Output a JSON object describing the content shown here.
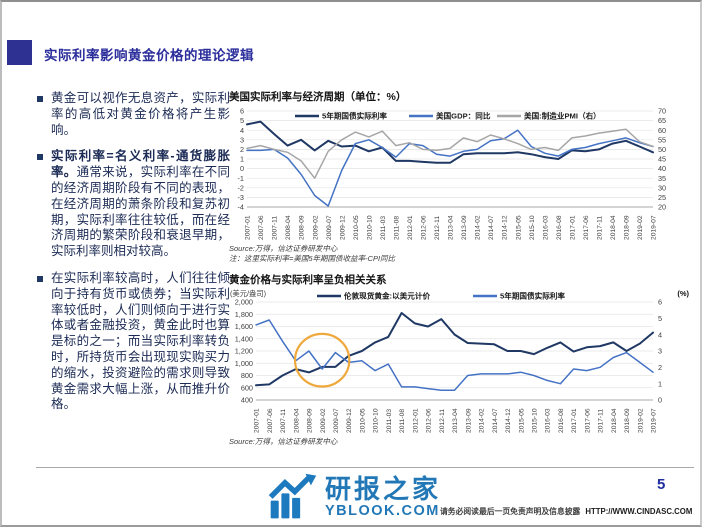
{
  "page": {
    "title": "实际利率影响黄金价格的理论逻辑",
    "page_number": "5",
    "footer": {
      "disclaimer": "请务必阅读最后一页免责声明及信息披露",
      "url": "HTTP://WWW.CINDASC.COM"
    },
    "watermark": {
      "name": "研报之家",
      "site": "YBLOOK.COM"
    }
  },
  "colors": {
    "accent_blue": "#2E3192",
    "title_blue": "#2B2E9B",
    "series_navy": "#1F3864",
    "series_blue": "#4472C4",
    "series_gray": "#A6A6A6",
    "highlight_orange": "#EFA83C",
    "logo_blue": "#2278B6"
  },
  "bullets": [
    {
      "bold_lead": "",
      "text": "黄金可以视作无息资产，实际利率的高低对黄金价格将产生影响。"
    },
    {
      "bold_lead": "实际利率=名义利率-通货膨胀率。",
      "text": "通常来说，实际利率在不同的经济周期阶段有不同的表现，在经济周期的萧条阶段和复苏初期，实际利率往往较低，而在经济周期的繁荣阶段和衰退早期，实际利率则相对较高。"
    },
    {
      "bold_lead": "",
      "text": "在实际利率较高时，人们往往倾向于持有货币或债券；当实际利率较低时，人们则倾向于进行实体或者金融投资，黄金此时也算是标的之一；而当实际利率转负时，所持货币会出现现实购买力的缩水，投资避险的需求则导致黄金需求大幅上涨，从而推升价格。"
    }
  ],
  "chart_data": [
    {
      "type": "line",
      "title": "美国实际利率与经济周期（单位：%）",
      "x": [
        "2007-01",
        "2007-06",
        "2007-11",
        "2008-04",
        "2008-09",
        "2009-02",
        "2009-07",
        "2009-12",
        "2010-05",
        "2010-10",
        "2011-03",
        "2011-08",
        "2012-01",
        "2012-06",
        "2012-11",
        "2013-04",
        "2013-09",
        "2014-02",
        "2014-07",
        "2014-12",
        "2015-05",
        "2015-10",
        "2016-03",
        "2016-08",
        "2017-01",
        "2017-06",
        "2017-11",
        "2018-04",
        "2018-09",
        "2019-02",
        "2019-07"
      ],
      "left_axis": {
        "min": -4,
        "max": 6
      },
      "right_axis": {
        "min": 20,
        "max": 70
      },
      "left_ticks": [
        "6",
        "5",
        "4",
        "3",
        "2",
        "1",
        "0",
        "-1",
        "-2",
        "-3",
        "-4"
      ],
      "right_ticks": [
        "70",
        "65",
        "60",
        "55",
        "50",
        "45",
        "40",
        "35",
        "30",
        "25",
        "20"
      ],
      "grid": true,
      "legend_position": "top",
      "series": [
        {
          "name": "5年期国债实际利率",
          "axis": "left",
          "color": "#1F3864",
          "values": [
            4.6,
            4.9,
            3.6,
            2.4,
            3.0,
            1.9,
            2.9,
            2.3,
            2.4,
            1.8,
            2.2,
            0.8,
            0.8,
            0.7,
            0.6,
            0.6,
            1.5,
            1.6,
            1.6,
            1.6,
            1.7,
            1.5,
            1.2,
            1.0,
            1.9,
            1.8,
            2.0,
            2.6,
            2.9,
            2.3,
            1.7
          ]
        },
        {
          "name": "美国GDP：同比",
          "axis": "left",
          "color": "#4472C4",
          "values": [
            1.9,
            1.9,
            2.0,
            1.1,
            -0.6,
            -2.8,
            -3.9,
            -0.2,
            2.6,
            3.0,
            2.2,
            1.2,
            2.6,
            2.4,
            1.5,
            1.3,
            1.8,
            2.0,
            2.9,
            3.1,
            4.0,
            2.3,
            1.6,
            1.3,
            2.0,
            2.2,
            2.6,
            2.9,
            3.2,
            2.7,
            2.3
          ]
        },
        {
          "name": "美国:制造业PMI（右）",
          "axis": "right",
          "color": "#A6A6A6",
          "values": [
            50.5,
            52,
            50,
            48.5,
            44,
            35,
            49,
            55,
            59,
            56.5,
            59.5,
            52,
            53.5,
            50,
            49.5,
            50.5,
            56,
            54,
            57.5,
            55.5,
            53,
            50,
            51,
            49.5,
            56,
            57,
            58.5,
            59.5,
            60.5,
            54,
            51.5
          ]
        }
      ],
      "source": "Source:万得，信达证券研发中心",
      "note": "注：这里实际利率=美国5年期国债收益率-CPI同比"
    },
    {
      "type": "line",
      "title": "黄金价格与实际利率呈负相关关系",
      "left_axis_label": "(美元/盎司)",
      "right_axis_label": "(%)",
      "x": [
        "2007-01",
        "2007-06",
        "2007-11",
        "2008-04",
        "2008-09",
        "2009-02",
        "2009-07",
        "2009-12",
        "2010-05",
        "2010-10",
        "2011-03",
        "2011-08",
        "2012-01",
        "2012-06",
        "2012-11",
        "2013-04",
        "2013-09",
        "2014-02",
        "2014-07",
        "2014-12",
        "2015-05",
        "2015-10",
        "2016-03",
        "2016-08",
        "2017-01",
        "2017-06",
        "2017-11",
        "2018-04",
        "2018-09",
        "2019-02",
        "2019-07"
      ],
      "left_axis": {
        "min": 400,
        "max": 2000
      },
      "right_axis": {
        "min": 0,
        "max": 6
      },
      "left_ticks": [
        "2,000",
        "1,800",
        "1,600",
        "1,400",
        "1,200",
        "1,000",
        "800",
        "600",
        "400"
      ],
      "right_ticks": [
        "6",
        "5",
        "4",
        "3",
        "2",
        "1",
        "0"
      ],
      "grid": true,
      "legend_position": "top",
      "series": [
        {
          "name": "伦敦现货黄金:以美元计价",
          "axis": "left",
          "color": "#1F3864",
          "values": [
            640,
            655,
            800,
            905,
            850,
            940,
            940,
            1120,
            1200,
            1340,
            1430,
            1820,
            1650,
            1600,
            1720,
            1470,
            1330,
            1320,
            1310,
            1200,
            1200,
            1150,
            1250,
            1340,
            1190,
            1260,
            1280,
            1340,
            1200,
            1320,
            1500
          ]
        },
        {
          "name": "5年期国债实际利率",
          "axis": "right",
          "color": "#4472C4",
          "values": [
            4.6,
            4.9,
            3.6,
            2.4,
            3.0,
            1.9,
            2.9,
            2.3,
            2.4,
            1.8,
            2.2,
            0.8,
            0.8,
            0.7,
            0.6,
            0.6,
            1.5,
            1.6,
            1.6,
            1.6,
            1.7,
            1.5,
            1.2,
            1.0,
            1.9,
            1.8,
            2.0,
            2.6,
            2.9,
            2.3,
            1.7
          ]
        }
      ],
      "highlight_circle": {
        "x_index": 5.0,
        "y_value": 1050,
        "rx_index": 2.05,
        "ry_value": 430,
        "color": "#EFA83C"
      },
      "source": "Source:万得，信达证券研发中心"
    }
  ]
}
